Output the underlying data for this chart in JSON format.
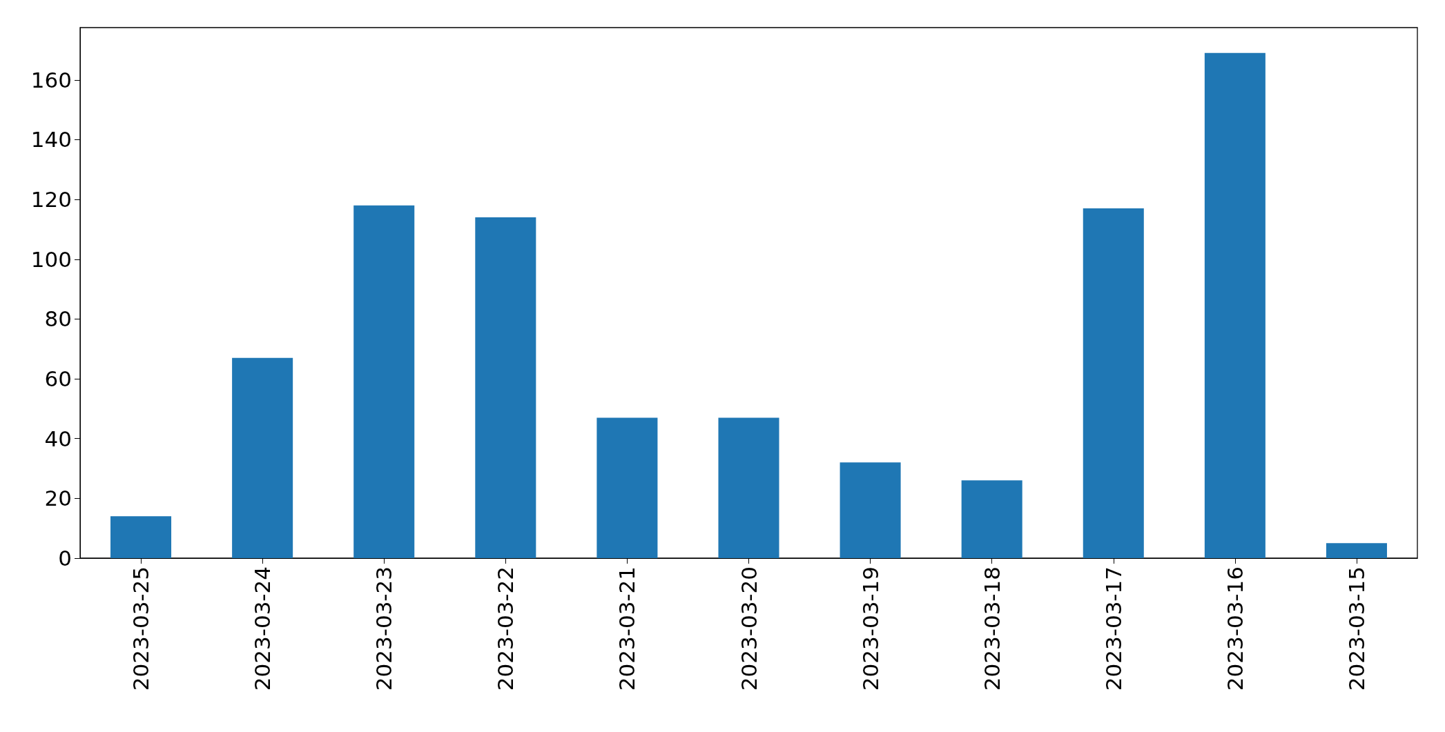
{
  "chart_data": {
    "type": "bar",
    "categories": [
      "2023-03-25",
      "2023-03-24",
      "2023-03-23",
      "2023-03-22",
      "2023-03-21",
      "2023-03-20",
      "2023-03-19",
      "2023-03-18",
      "2023-03-17",
      "2023-03-16",
      "2023-03-15"
    ],
    "values": [
      14,
      67,
      118,
      114,
      47,
      47,
      32,
      26,
      117,
      169,
      5
    ],
    "color": "#1f77b4",
    "ylim": [
      0,
      177.5
    ],
    "yticks": [
      0,
      20,
      40,
      60,
      80,
      100,
      120,
      140,
      160
    ],
    "grid": false
  }
}
